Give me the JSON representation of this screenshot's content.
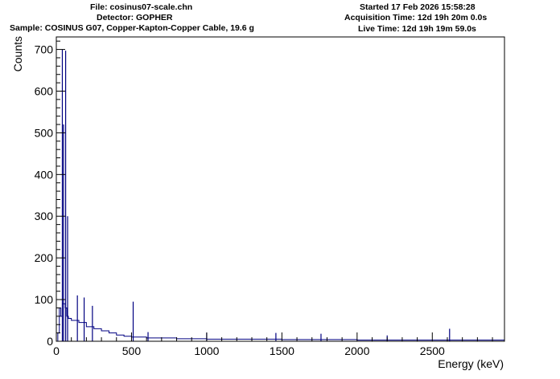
{
  "header": {
    "file": "File: cosinus07-scale.chn",
    "detector": "Detector: GOPHER",
    "sample": "Sample: COSINUS G07, Copper-Kapton-Copper Cable, 19.6 g",
    "started": "Started 17 Feb 2026 15:58:28",
    "acquisition": "Acquisition Time: 12d 19h 20m 0.0s",
    "live": "Live Time: 12d 19h 19m 59.0s"
  },
  "colors": {
    "histogram": "#000080",
    "axis": "#000000"
  },
  "chart_data": {
    "type": "histogram",
    "xlabel": "Energy (keV)",
    "ylabel": "Counts",
    "xlim": [
      0,
      2980
    ],
    "ylim": [
      0,
      730
    ],
    "x_ticks": [
      0,
      500,
      1000,
      1500,
      2000,
      2500
    ],
    "y_ticks": [
      0,
      100,
      200,
      300,
      400,
      500,
      600,
      700
    ],
    "grid": false,
    "legend": "none",
    "peaks": [
      {
        "x": 40,
        "y": 700
      },
      {
        "x": 48,
        "y": 520
      },
      {
        "x": 62,
        "y": 697
      },
      {
        "x": 75,
        "y": 300
      },
      {
        "x": 140,
        "y": 110
      },
      {
        "x": 185,
        "y": 105
      },
      {
        "x": 240,
        "y": 85
      },
      {
        "x": 511,
        "y": 95
      },
      {
        "x": 610,
        "y": 22
      },
      {
        "x": 1000,
        "y": 20
      },
      {
        "x": 1460,
        "y": 20
      },
      {
        "x": 1760,
        "y": 18
      },
      {
        "x": 2200,
        "y": 14
      },
      {
        "x": 2615,
        "y": 30
      }
    ],
    "envelope": [
      {
        "x": 0,
        "y": 0
      },
      {
        "x": 10,
        "y": 20
      },
      {
        "x": 20,
        "y": 80
      },
      {
        "x": 30,
        "y": 60
      },
      {
        "x": 40,
        "y": 90
      },
      {
        "x": 50,
        "y": 90
      },
      {
        "x": 60,
        "y": 80
      },
      {
        "x": 70,
        "y": 60
      },
      {
        "x": 80,
        "y": 55
      },
      {
        "x": 100,
        "y": 50
      },
      {
        "x": 150,
        "y": 45
      },
      {
        "x": 200,
        "y": 35
      },
      {
        "x": 250,
        "y": 30
      },
      {
        "x": 300,
        "y": 25
      },
      {
        "x": 350,
        "y": 20
      },
      {
        "x": 400,
        "y": 15
      },
      {
        "x": 450,
        "y": 12
      },
      {
        "x": 500,
        "y": 10
      },
      {
        "x": 600,
        "y": 8
      },
      {
        "x": 800,
        "y": 6
      },
      {
        "x": 1000,
        "y": 5
      },
      {
        "x": 1500,
        "y": 4
      },
      {
        "x": 2000,
        "y": 3
      },
      {
        "x": 2500,
        "y": 3
      },
      {
        "x": 2980,
        "y": 2
      }
    ]
  }
}
